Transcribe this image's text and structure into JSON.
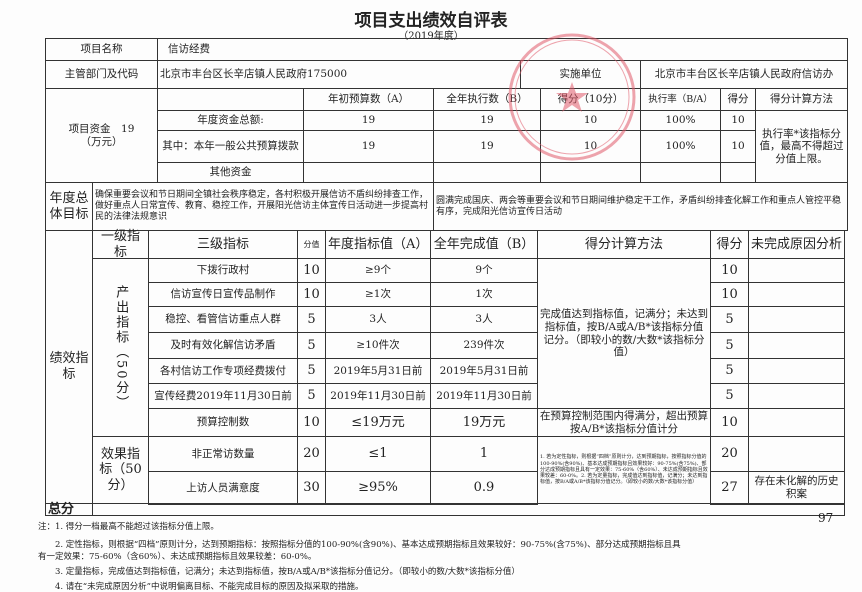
{
  "title": "项目支出绩效自评表",
  "year": "（2019年度）",
  "project": {
    "name_label": "项目名称",
    "name": "信访经费",
    "dept_label": "主管部门及代码",
    "dept": "北京市丰台区长辛店镇人民政府175000",
    "impl_label": "实施单位",
    "impl": "北京市丰台区长辛店镇人民政府信访办"
  },
  "funding": {
    "label": "项目资金　19\n（万元）",
    "h_budget": "年初预算数（A）",
    "h_exec": "全年执行数（B）",
    "h_score": "得分（10分）",
    "h_rate": "执行率（B/A）",
    "h_pts": "得分",
    "h_method": "得分计算方法",
    "rows": [
      {
        "label": "年度资金总额:",
        "a": "19",
        "b": "19",
        "score": "10",
        "rate": "100%",
        "pts": "10"
      },
      {
        "label": "其中：本年一般公共预算拨款",
        "a": "19",
        "b": "19",
        "score": "10",
        "rate": "100%",
        "pts": "10"
      },
      {
        "label": "其他资金",
        "a": "",
        "b": "",
        "score": "",
        "rate": "",
        "pts": ""
      }
    ],
    "method": "执行率*该指标分值，最高不得超过分值上限。"
  },
  "goals": {
    "label": "年度总体目标",
    "planned": "确保重要会议和节日期间全镇社会秩序稳定，各村积极开展信访不盾纠纷排查工作，做好重点人日常宣传、教育、稳控工作，开展阳光信访主体宣传日活动进一步提高村民的法律法规意识",
    "actual": "圆满完成国庆、两会等重要会议和节日期间维护稳定干工作，矛盾纠纷排查化解工作和重点人管控平稳有序，完成阳光信访宣传日活动"
  },
  "indicators": {
    "label": "绩效指标",
    "headers": {
      "l1": "一级指标",
      "l3": "三级指标",
      "weight": "分值",
      "target": "年度指标值（A）",
      "actual": "全年完成值（B）",
      "method": "得分计算方法",
      "score": "得分",
      "reason": "未完成原因分析"
    },
    "output_label": "产出指标（50分）",
    "effect_label": "效果指标（50分）",
    "rows": [
      {
        "name": "下拨行政村",
        "weight": "10",
        "target": "≥9个",
        "actual": "9个",
        "score": "10",
        "reason": ""
      },
      {
        "name": "信访宣传日宣传品制作",
        "weight": "10",
        "target": "≥1次",
        "actual": "1次",
        "score": "10",
        "reason": ""
      },
      {
        "name": "稳控、看管信访重点人群",
        "weight": "5",
        "target": "3人",
        "actual": "3人",
        "score": "5",
        "reason": ""
      },
      {
        "name": "及时有效化解信访矛盾",
        "weight": "5",
        "target": "≥10件次",
        "actual": "239件次",
        "score": "5",
        "reason": ""
      },
      {
        "name": "各村信访工作专项经费拨付",
        "weight": "5",
        "target": "2019年5月31日前",
        "actual": "2019年5月31日前",
        "score": "5",
        "reason": ""
      },
      {
        "name": "宣传经费2019年11月30日前",
        "weight": "5",
        "target": "2019年11月30日前",
        "actual": "2019年11月30日前",
        "score": "5",
        "reason": ""
      },
      {
        "name": "预算控制数",
        "weight": "10",
        "target": "≤19万元",
        "actual": "19万元",
        "score": "10",
        "reason": ""
      },
      {
        "name": "非正常访数量",
        "weight": "20",
        "target": "≤1",
        "actual": "1",
        "score": "20",
        "reason": ""
      },
      {
        "name": "上访人员满意度",
        "weight": "30",
        "target": "≥95%",
        "actual": "0.9",
        "score": "27",
        "reason": "存在未化解的历史积案"
      }
    ],
    "method_output": "完成值达到指标值，记满分；未达到指标值，按B/A或A/B*该指标分值记分。（即较小的数/大数*该指标分值）",
    "method_budget": "在预算控制范围内得满分，超出预算按A/B*该指标分值计分",
    "method_effect": "1. 若为定性指标，则根据“四档”原则计分，达到预期指标，按照指标分值的100-90%(含90%)、基本达成预期指标且效果较好：90-75%(含75%)、部分达成预期指标且具有一定效果：75-60%（含60%）、未达成预期指标且效果较差：60-0%。2. 若为定量指标，完成值达到指标值，记满分；未达到指标值，按B/A或A/B*该指标分值记分。（即较小的数/大数*该指标分值）"
  },
  "total": {
    "label": "总分",
    "value": "97"
  },
  "notes": [
    "注：1. 得分一档最高不能超过该指标分值上限。",
    "2. 定性指标，则根据“四档”原则计分，达到预期指标：按照指标分值的100-90%(含90%)、基本达成预期指标且效果较好：90-75%(含75%)、部分达成预期指标且具",
    "有一定效果：75-60%（含60%）、未达成预期指标且效果较差：60-0%。",
    "3. 定量指标，完成值达到指标值，记满分；未达到指标值，按B/A或A/B*该指标分值记分。（即较小的数/大数*该指标分值）",
    "4. 请在“未完成原因分析”中说明偏离目标、不能完成目标的原因及拟采取的措施。"
  ],
  "stamp": {
    "text": "北京市丰台区长辛店镇人民政府",
    "color": "#e05a6a"
  }
}
